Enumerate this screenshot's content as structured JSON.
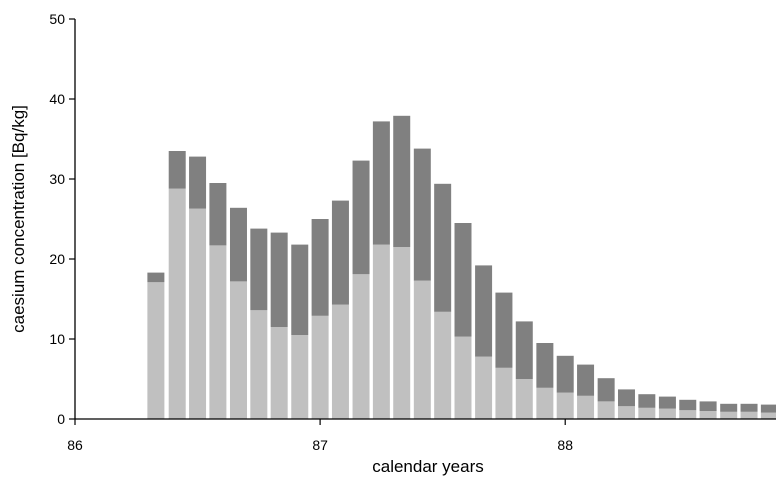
{
  "chart_data": {
    "type": "bar",
    "stacked": true,
    "title": "",
    "xlabel": "calendar years",
    "ylabel": "caesium concentration [Bq/kg]",
    "xlim": [
      86,
      88.86
    ],
    "ylim": [
      0,
      50
    ],
    "x_ticks": [
      "86",
      "87",
      "88"
    ],
    "y_ticks": [
      "0",
      "10",
      "20",
      "30",
      "40",
      "50"
    ],
    "grid": false,
    "legend": "none",
    "colors": {
      "lower": "#c0c0c0",
      "upper": "#808080",
      "axis": "#000000"
    },
    "x": [
      86.33,
      86.417,
      86.5,
      86.583,
      86.667,
      86.75,
      86.833,
      86.917,
      87.0,
      87.083,
      87.167,
      87.25,
      87.333,
      87.417,
      87.5,
      87.583,
      87.667,
      87.75,
      87.833,
      87.917,
      88.0,
      88.083,
      88.167,
      88.25,
      88.333,
      88.417,
      88.5,
      88.583,
      88.667,
      88.75,
      88.833
    ],
    "series": [
      {
        "values": [
          17.1,
          28.8,
          26.3,
          21.7,
          17.2,
          13.6,
          11.5,
          10.5,
          12.9,
          14.3,
          18.1,
          21.8,
          21.5,
          17.3,
          13.4,
          10.3,
          7.8,
          6.4,
          5.0,
          3.9,
          3.3,
          2.9,
          2.2,
          1.6,
          1.4,
          1.3,
          1.1,
          1.0,
          0.9,
          0.9,
          0.8
        ]
      },
      {
        "values": [
          1.2,
          4.7,
          6.5,
          7.8,
          9.2,
          10.2,
          11.8,
          11.3,
          12.1,
          13.0,
          14.2,
          15.4,
          16.4,
          16.5,
          16.0,
          14.2,
          11.4,
          9.4,
          7.2,
          5.6,
          4.6,
          3.9,
          2.9,
          2.1,
          1.7,
          1.5,
          1.3,
          1.2,
          1.0,
          1.0,
          1.0
        ]
      }
    ]
  }
}
